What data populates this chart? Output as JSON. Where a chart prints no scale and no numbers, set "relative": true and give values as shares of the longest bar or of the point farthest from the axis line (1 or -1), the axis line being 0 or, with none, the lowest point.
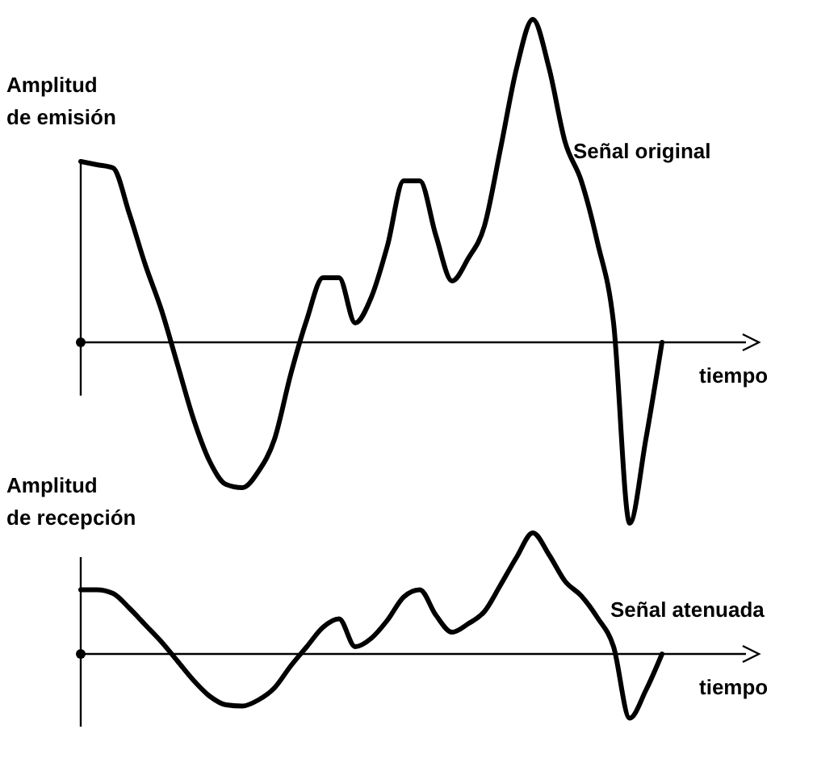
{
  "chart_data": [
    {
      "type": "line",
      "relative": true,
      "xlabel": "tiempo",
      "ylabel": "Amplitud de emisión",
      "categories": [
        null,
        null,
        null,
        null,
        null,
        null,
        null,
        null,
        null,
        null,
        null,
        null,
        null,
        null,
        null,
        null,
        null,
        null,
        null,
        null,
        null,
        null,
        null,
        null,
        null,
        null,
        null,
        null,
        null,
        null,
        null,
        null,
        null,
        null,
        null,
        null,
        null
      ],
      "series": [
        {
          "name": "Señal original",
          "color": "#000000",
          "values": [
            0.56,
            0.55,
            0.54,
            0.4,
            0.24,
            0.1,
            -0.07,
            -0.24,
            -0.37,
            -0.44,
            -0.45,
            -0.4,
            -0.3,
            -0.1,
            0.07,
            0.2,
            0.2,
            0.06,
            0.14,
            0.3,
            0.5,
            0.5,
            0.33,
            0.19,
            0.26,
            0.36,
            0.6,
            0.85,
            1,
            0.85,
            0.62,
            0.5,
            0.31,
            0.06,
            -0.56,
            -0.3,
            0
          ]
        }
      ]
    },
    {
      "type": "line",
      "relative": true,
      "xlabel": "tiempo",
      "ylabel": "Amplitud de recepción",
      "categories": [
        null,
        null,
        null,
        null,
        null,
        null,
        null,
        null,
        null,
        null,
        null,
        null,
        null,
        null,
        null,
        null,
        null,
        null,
        null,
        null,
        null,
        null,
        null,
        null,
        null,
        null,
        null,
        null,
        null,
        null,
        null,
        null,
        null,
        null,
        null,
        null,
        null
      ],
      "series": [
        {
          "name": "Señal atenuada",
          "color": "#000000",
          "values": [
            0.53,
            0.53,
            0.5,
            0.38,
            0.24,
            0.1,
            -0.06,
            -0.22,
            -0.35,
            -0.42,
            -0.43,
            -0.38,
            -0.28,
            -0.1,
            0.06,
            0.22,
            0.29,
            0.06,
            0.13,
            0.28,
            0.47,
            0.53,
            0.32,
            0.18,
            0.25,
            0.35,
            0.57,
            0.8,
            1,
            0.82,
            0.6,
            0.48,
            0.3,
            0.06,
            -0.53,
            -0.3,
            0
          ]
        }
      ]
    }
  ]
}
